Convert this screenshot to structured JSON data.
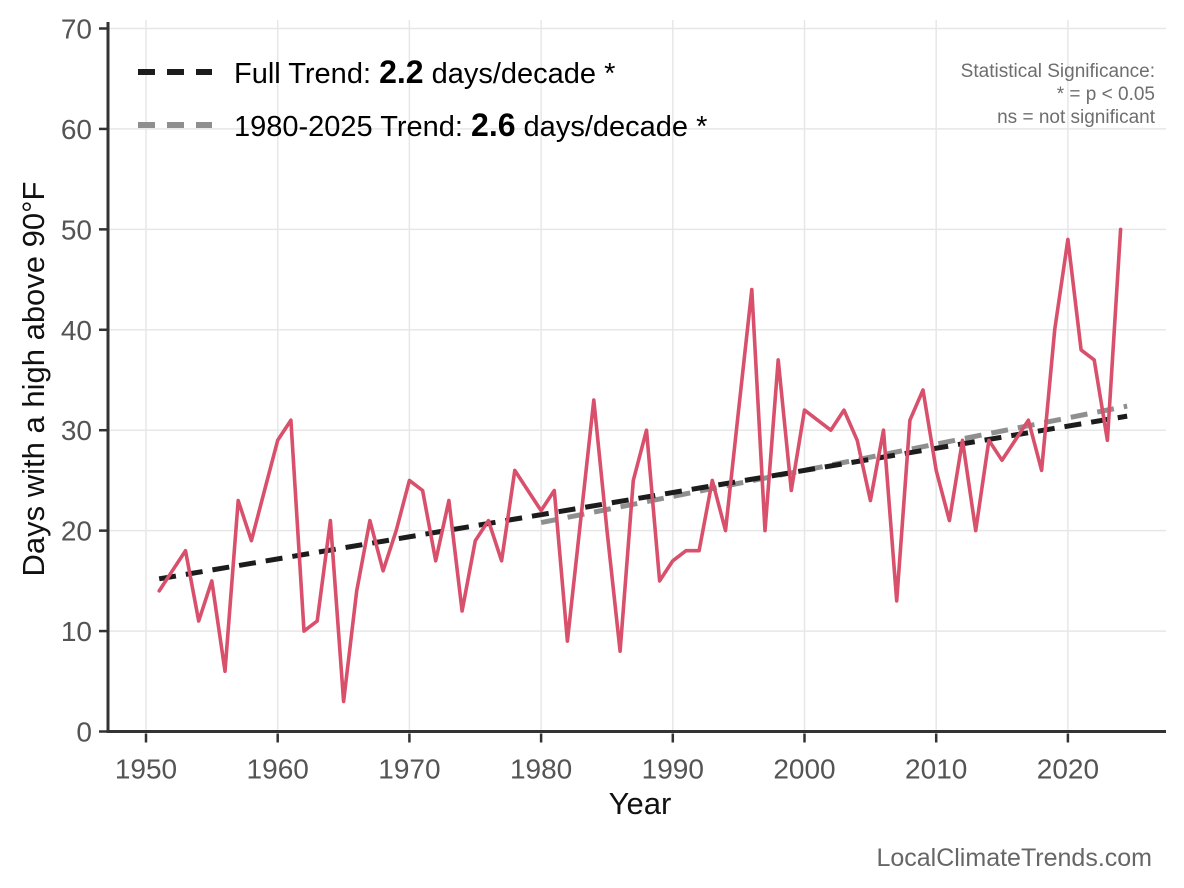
{
  "chart_data": {
    "type": "line",
    "title": "",
    "xlabel": "Year",
    "ylabel": "Days with a high above 90°F",
    "x_ticks": [
      1950,
      1960,
      1970,
      1980,
      1990,
      2000,
      2010,
      2020
    ],
    "y_ticks": [
      0,
      10,
      20,
      30,
      40,
      50,
      60,
      70
    ],
    "xlim": [
      1947,
      2026
    ],
    "ylim": [
      0,
      70
    ],
    "grid": true,
    "legend_position": "top-left",
    "series": [
      {
        "name": "Days with a high above 90°F",
        "color": "#d8506b",
        "start_year": 1951,
        "end_year": 2024,
        "values": [
          14,
          16,
          18,
          11,
          15,
          6,
          23,
          19,
          24,
          29,
          31,
          10,
          11,
          21,
          3,
          14,
          21,
          16,
          20,
          25,
          24,
          17,
          23,
          12,
          19,
          21,
          17,
          26,
          24,
          22,
          24,
          9,
          21,
          33,
          20,
          8,
          25,
          30,
          15,
          17,
          18,
          18,
          25,
          20,
          32,
          44,
          20,
          37,
          24,
          32,
          31,
          30,
          32,
          29,
          23,
          30,
          13,
          31,
          34,
          26,
          21,
          29,
          20,
          29,
          27,
          29,
          31,
          26,
          40,
          49,
          38,
          37,
          29,
          50
        ]
      }
    ],
    "trend_lines": [
      {
        "name": "Full Trend",
        "slope_days_per_decade": 2.2,
        "significant": true,
        "color": "#1c1c1c",
        "x1": 1951,
        "y1": 15.2,
        "x2": 2024.5,
        "y2": 31.4
      },
      {
        "name": "1980-2025 Trend",
        "slope_days_per_decade": 2.6,
        "significant": true,
        "color": "#8f8f8f",
        "x1": 1980,
        "y1": 20.8,
        "x2": 2024.5,
        "y2": 32.4
      }
    ]
  },
  "legend": {
    "full": {
      "prefix": "Full Trend: ",
      "value": "2.2",
      "suffix": " days/decade *"
    },
    "recent": {
      "prefix": "1980-2025 Trend: ",
      "value": "2.6",
      "suffix": " days/decade *"
    }
  },
  "significance_note": {
    "line1": "Statistical Significance:",
    "line2": "* = p < 0.05",
    "line3": "ns = not significant"
  },
  "watermark": "LocalClimateTrends.com",
  "colors": {
    "series": "#d8506b",
    "full_trend": "#1c1c1c",
    "recent_trend": "#8f8f8f",
    "grid": "#e7e7e7",
    "axis": "#333333",
    "tick_label": "#545454",
    "note": "#6e6e6e",
    "watermark": "#666666"
  }
}
